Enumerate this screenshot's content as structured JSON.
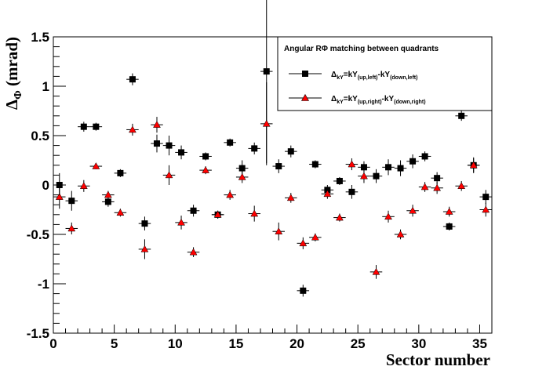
{
  "chart_data": {
    "type": "scatter",
    "title": "",
    "xlabel": "Sector number",
    "ylabel": {
      "base": "Δ",
      "sub": "Φ",
      "rest": " (mrad)"
    },
    "xlim": [
      0,
      36
    ],
    "ylim": [
      -1.5,
      1.5
    ],
    "x_ticks": [
      "0",
      "5",
      "10",
      "15",
      "20",
      "25",
      "30",
      "35"
    ],
    "y_ticks": [
      "-1.5",
      "-1",
      "-0.5",
      "0",
      "0.5",
      "1",
      "1.5"
    ],
    "grid": false,
    "legend_position": "top-right",
    "legend": {
      "header": "Angular RΦ matching between quadrants",
      "entries": [
        {
          "base": "Δ",
          "base_sub": "kY",
          "eq": "=kY",
          "sub1": "(up,left)",
          "mid": "-kY",
          "sub2": "(down,left)"
        },
        {
          "base": "Δ",
          "base_sub": "kY",
          "eq": "=kY",
          "sub1": "(up,right)",
          "mid": "-kY",
          "sub2": "(down,right)"
        }
      ]
    },
    "x": [
      0.5,
      1.5,
      2.5,
      3.5,
      4.5,
      5.5,
      6.5,
      7.5,
      8.5,
      9.5,
      10.5,
      11.5,
      12.5,
      13.5,
      14.5,
      15.5,
      16.5,
      17.5,
      18.5,
      19.5,
      20.5,
      21.5,
      22.5,
      23.5,
      24.5,
      25.5,
      26.5,
      27.5,
      28.5,
      29.5,
      30.5,
      31.5,
      32.5,
      33.5,
      34.5,
      35.5
    ],
    "series": [
      {
        "marker": "square",
        "color": "#000000",
        "values": [
          0.0,
          -0.16,
          0.59,
          0.59,
          -0.17,
          0.12,
          1.07,
          -0.39,
          0.42,
          0.4,
          0.33,
          -0.26,
          0.29,
          -0.3,
          0.43,
          0.17,
          0.37,
          1.15,
          0.19,
          0.34,
          -1.07,
          0.21,
          -0.05,
          0.04,
          -0.07,
          0.18,
          0.09,
          0.18,
          0.17,
          0.24,
          0.29,
          0.07,
          -0.42,
          0.7,
          0.2,
          -0.12
        ],
        "errors": [
          0.12,
          0.1,
          0.05,
          0.04,
          0.05,
          0.04,
          0.06,
          0.07,
          0.09,
          0.1,
          0.07,
          0.06,
          0.04,
          0.04,
          0.04,
          0.08,
          0.06,
          0.93,
          0.07,
          0.06,
          0.06,
          0.04,
          0.05,
          0.04,
          0.07,
          0.06,
          0.07,
          0.08,
          0.08,
          0.07,
          0.05,
          0.06,
          0.04,
          0.05,
          0.08,
          0.07
        ]
      },
      {
        "marker": "triangle",
        "color": "#ff0000",
        "values": [
          -0.12,
          -0.44,
          -0.01,
          0.19,
          -0.1,
          -0.28,
          0.56,
          -0.65,
          0.61,
          0.1,
          -0.38,
          -0.68,
          0.15,
          -0.3,
          -0.1,
          0.08,
          -0.29,
          0.62,
          -0.47,
          -0.13,
          -0.59,
          -0.53,
          -0.09,
          -0.33,
          0.21,
          0.09,
          -0.88,
          -0.32,
          -0.5,
          -0.26,
          -0.02,
          -0.03,
          -0.27,
          -0.01,
          0.2,
          -0.25
        ],
        "errors": [
          0.12,
          0.06,
          0.06,
          0.03,
          0.04,
          0.04,
          0.06,
          0.1,
          0.08,
          0.1,
          0.07,
          0.05,
          0.04,
          0.04,
          0.05,
          0.06,
          0.08,
          0.42,
          0.09,
          0.05,
          0.06,
          0.04,
          0.05,
          0.04,
          0.06,
          0.07,
          0.07,
          0.06,
          0.05,
          0.06,
          0.05,
          0.06,
          0.05,
          0.05,
          0.07,
          0.07
        ]
      }
    ]
  }
}
